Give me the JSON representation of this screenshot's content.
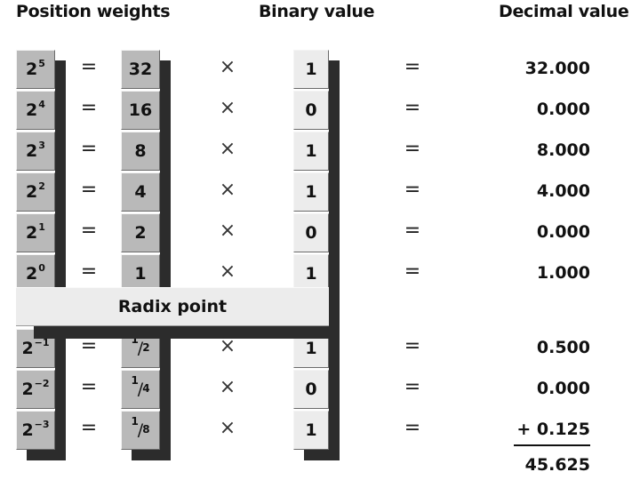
{
  "headers": {
    "position_weights": "Position weights",
    "binary_value": "Binary value",
    "decimal_value": "Decimal value"
  },
  "radix_label": "Radix point",
  "equals": "=",
  "times": "×",
  "rows_upper": [
    {
      "base": "2",
      "exp": "5",
      "weight": "32",
      "bit": "1",
      "decimal": "32.000"
    },
    {
      "base": "2",
      "exp": "4",
      "weight": "16",
      "bit": "0",
      "decimal": "0.000"
    },
    {
      "base": "2",
      "exp": "3",
      "weight": "8",
      "bit": "1",
      "decimal": "8.000"
    },
    {
      "base": "2",
      "exp": "2",
      "weight": "4",
      "bit": "1",
      "decimal": "4.000"
    },
    {
      "base": "2",
      "exp": "1",
      "weight": "2",
      "bit": "0",
      "decimal": "0.000"
    },
    {
      "base": "2",
      "exp": "0",
      "weight": "1",
      "bit": "1",
      "decimal": "1.000"
    }
  ],
  "rows_lower": [
    {
      "base": "2",
      "exp": "−1",
      "w_num": "1",
      "w_den": "2",
      "bit": "1",
      "decimal": "0.500"
    },
    {
      "base": "2",
      "exp": "−2",
      "w_num": "1",
      "w_den": "4",
      "bit": "0",
      "decimal": "0.000"
    },
    {
      "base": "2",
      "exp": "−3",
      "w_num": "1",
      "w_den": "8",
      "bit": "1",
      "decimal": "+ 0.125"
    }
  ],
  "total": "45.625"
}
